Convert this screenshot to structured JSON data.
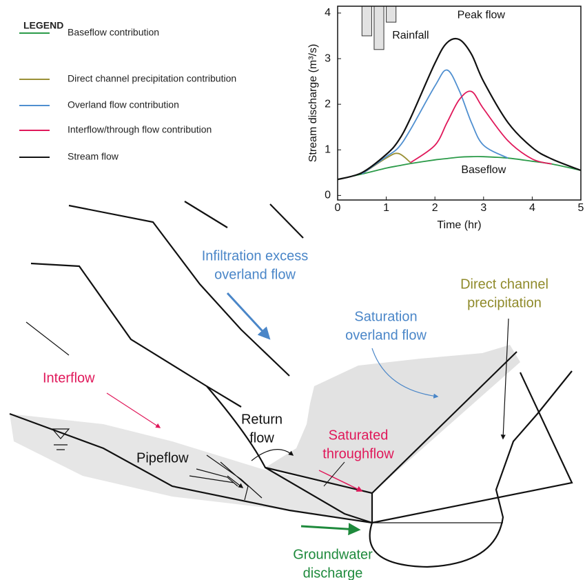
{
  "legend": {
    "title": "LEGEND"
  },
  "chart_data": {
    "type": "line",
    "x": [
      0,
      0.5,
      1,
      1.25,
      1.5,
      2,
      2.25,
      2.5,
      2.75,
      3,
      3.5,
      4,
      4.4,
      5
    ],
    "series": [
      {
        "name": "Baseflow contribution",
        "color": "#2a9a48",
        "values": [
          0.35,
          0.47,
          0.6,
          0.65,
          0.7,
          0.78,
          0.81,
          0.84,
          0.85,
          0.85,
          0.82,
          0.75,
          0.69,
          0.55
        ]
      },
      {
        "name": "Direct channel precipitation contribution",
        "color": "#9a9035",
        "values": [
          null,
          0.47,
          0.82,
          0.92,
          0.72,
          null,
          null,
          null,
          null,
          null,
          null,
          null,
          null,
          null
        ]
      },
      {
        "name": "Overland flow contribution",
        "color": "#4f8fd0",
        "values": [
          null,
          0.47,
          0.85,
          1.05,
          1.45,
          2.4,
          2.75,
          2.3,
          1.6,
          1.1,
          0.82,
          null,
          null,
          null
        ]
      },
      {
        "name": "Interflow/through flow contribution",
        "color": "#e0185a",
        "values": [
          null,
          null,
          null,
          null,
          0.72,
          1.1,
          1.6,
          2.1,
          2.28,
          1.9,
          1.2,
          0.8,
          0.69,
          null
        ]
      },
      {
        "name": "Stream flow",
        "color": "#111111",
        "values": [
          0.35,
          0.5,
          0.9,
          1.2,
          1.7,
          2.9,
          3.35,
          3.42,
          3.1,
          2.5,
          1.6,
          1.05,
          0.8,
          0.55
        ]
      }
    ],
    "xlabel": "Time (hr)",
    "ylabel": "Stream discharge (m³/s)",
    "xlim": [
      0,
      5
    ],
    "ylim": [
      -0.1,
      4.15
    ],
    "xticks": [
      0,
      1,
      2,
      3,
      4,
      5
    ],
    "yticks": [
      0,
      1,
      2,
      3,
      4
    ],
    "annotations": [
      "Peak flow",
      "Rainfall",
      "Baseflow"
    ],
    "rainfall": {
      "x": [
        0.6,
        0.85,
        1.1
      ],
      "values": [
        3.5,
        3.2,
        3.8
      ],
      "color": "#e2e2e2"
    }
  },
  "labels": [
    {
      "lines": [
        "Infiltration excess",
        "overland flow"
      ],
      "color": "#4a86c8"
    },
    {
      "lines": [
        "Saturation",
        "overland flow"
      ],
      "color": "#4a86c8"
    },
    {
      "lines": [
        "Direct channel",
        "precipitation"
      ],
      "color": "#8f8a2a"
    },
    {
      "lines": [
        "Interflow"
      ],
      "color": "#e0185a"
    },
    {
      "lines": [
        "Return",
        "flow"
      ],
      "color": "#111111"
    },
    {
      "lines": [
        "Saturated",
        "throughflow"
      ],
      "color": "#e0185a"
    },
    {
      "lines": [
        "Pipeflow"
      ],
      "color": "#111111"
    },
    {
      "lines": [
        "Groundwater",
        "discharge"
      ],
      "color": "#1e8a3c"
    }
  ]
}
